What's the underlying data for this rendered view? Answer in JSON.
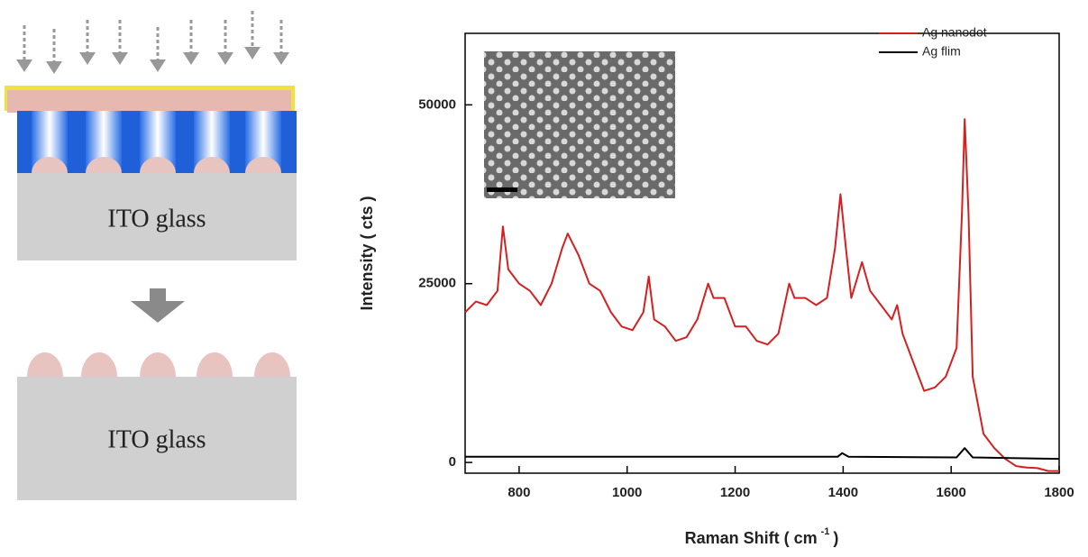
{
  "diagram": {
    "labels": [
      "ITO glass",
      "ITO glass"
    ]
  },
  "chart_data": {
    "type": "line",
    "xlabel": "Raman Shift ( cm",
    "xlabel_sup": "-1",
    "xlabel_end": ")",
    "ylabel": "Intensity ( cts )",
    "xlim": [
      700,
      1800
    ],
    "xticks": [
      800,
      1000,
      1200,
      1400,
      1600,
      1800
    ],
    "ylim": [
      -1500,
      60000
    ],
    "yticks": [
      0,
      25000,
      50000
    ],
    "legend": "top-right",
    "series": [
      {
        "name": "Ag nanodot",
        "color": "#d42020",
        "x": [
          700,
          720,
          740,
          760,
          770,
          780,
          800,
          820,
          840,
          860,
          880,
          890,
          910,
          930,
          950,
          970,
          990,
          1010,
          1030,
          1040,
          1050,
          1070,
          1090,
          1110,
          1130,
          1150,
          1160,
          1180,
          1200,
          1220,
          1240,
          1260,
          1280,
          1300,
          1310,
          1330,
          1350,
          1370,
          1385,
          1395,
          1405,
          1415,
          1435,
          1450,
          1470,
          1490,
          1500,
          1510,
          1530,
          1550,
          1570,
          1590,
          1610,
          1620,
          1625,
          1632,
          1640,
          1660,
          1680,
          1700,
          1720,
          1740,
          1760,
          1780,
          1800
        ],
        "values": [
          21000,
          22500,
          22000,
          24000,
          33000,
          27000,
          25000,
          24000,
          22000,
          25000,
          30000,
          32000,
          29000,
          25000,
          24000,
          21000,
          19000,
          18500,
          21000,
          26000,
          20000,
          19000,
          17000,
          17500,
          20000,
          25000,
          23000,
          23000,
          19000,
          19000,
          17000,
          16500,
          18000,
          25000,
          23000,
          23000,
          22000,
          23000,
          30000,
          37500,
          30000,
          23000,
          28000,
          24000,
          22000,
          20000,
          22000,
          18000,
          14000,
          10000,
          10500,
          12000,
          16000,
          35000,
          48000,
          35000,
          12000,
          4000,
          2000,
          500,
          -500,
          -700,
          -800,
          -1200,
          -1200
        ]
      },
      {
        "name": "Ag flim",
        "color": "#000000",
        "x": [
          700,
          1000,
          1390,
          1398,
          1410,
          1610,
          1625,
          1640,
          1800
        ],
        "values": [
          800,
          800,
          800,
          1300,
          800,
          700,
          2000,
          700,
          500
        ]
      }
    ]
  }
}
